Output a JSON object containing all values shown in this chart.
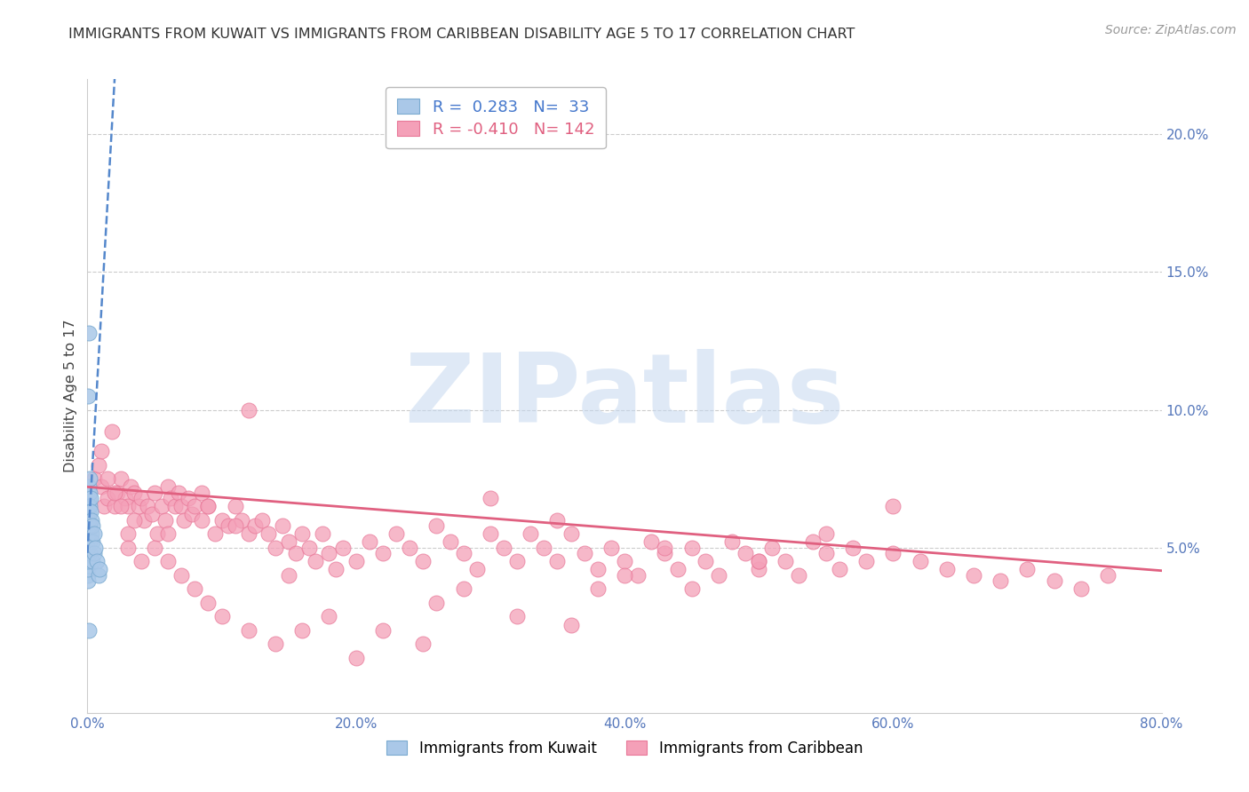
{
  "title": "IMMIGRANTS FROM KUWAIT VS IMMIGRANTS FROM CARIBBEAN DISABILITY AGE 5 TO 17 CORRELATION CHART",
  "source": "Source: ZipAtlas.com",
  "ylabel": "Disability Age 5 to 17",
  "xlim": [
    0.0,
    0.8
  ],
  "ylim": [
    -0.01,
    0.22
  ],
  "plot_ylim": [
    -0.01,
    0.22
  ],
  "xticks": [
    0.0,
    0.2,
    0.4,
    0.6,
    0.8
  ],
  "xtick_labels": [
    "0.0%",
    "20.0%",
    "40.0%",
    "60.0%",
    "80.0%"
  ],
  "yticks_right": [
    0.05,
    0.1,
    0.15,
    0.2
  ],
  "ytick_labels_right": [
    "5.0%",
    "10.0%",
    "15.0%",
    "20.0%"
  ],
  "kuwait_color": "#aac8e8",
  "caribbean_color": "#f4a0b8",
  "kuwait_edge": "#7aaad0",
  "caribbean_edge": "#e87898",
  "trend_kuwait_color": "#5588cc",
  "trend_caribbean_color": "#e06080",
  "watermark": "ZIPatlas",
  "watermark_color": "#c5d8f0",
  "legend_r_kuwait": "0.283",
  "legend_n_kuwait": "33",
  "legend_r_caribbean": "-0.410",
  "legend_n_caribbean": "142",
  "kuwait_x": [
    0.0002,
    0.0003,
    0.0004,
    0.0005,
    0.0006,
    0.0008,
    0.001,
    0.001,
    0.001,
    0.0012,
    0.0013,
    0.0015,
    0.0015,
    0.0016,
    0.0018,
    0.002,
    0.002,
    0.0022,
    0.0025,
    0.003,
    0.003,
    0.0035,
    0.004,
    0.004,
    0.005,
    0.005,
    0.006,
    0.007,
    0.008,
    0.009,
    0.0005,
    0.0008,
    0.001
  ],
  "kuwait_y": [
    0.04,
    0.038,
    0.042,
    0.045,
    0.05,
    0.055,
    0.06,
    0.065,
    0.068,
    0.072,
    0.062,
    0.058,
    0.052,
    0.048,
    0.07,
    0.075,
    0.065,
    0.068,
    0.063,
    0.06,
    0.055,
    0.058,
    0.052,
    0.045,
    0.055,
    0.048,
    0.05,
    0.045,
    0.04,
    0.042,
    0.105,
    0.128,
    0.02
  ],
  "caribbean_x": [
    0.005,
    0.008,
    0.01,
    0.012,
    0.015,
    0.018,
    0.02,
    0.022,
    0.025,
    0.028,
    0.03,
    0.032,
    0.035,
    0.038,
    0.04,
    0.042,
    0.045,
    0.048,
    0.05,
    0.052,
    0.055,
    0.058,
    0.06,
    0.062,
    0.065,
    0.068,
    0.07,
    0.072,
    0.075,
    0.078,
    0.08,
    0.085,
    0.09,
    0.095,
    0.1,
    0.105,
    0.11,
    0.115,
    0.12,
    0.125,
    0.13,
    0.135,
    0.14,
    0.145,
    0.15,
    0.155,
    0.16,
    0.165,
    0.17,
    0.175,
    0.18,
    0.185,
    0.19,
    0.2,
    0.21,
    0.22,
    0.23,
    0.24,
    0.25,
    0.26,
    0.27,
    0.28,
    0.29,
    0.3,
    0.31,
    0.32,
    0.33,
    0.34,
    0.35,
    0.36,
    0.37,
    0.38,
    0.39,
    0.4,
    0.41,
    0.42,
    0.43,
    0.44,
    0.45,
    0.46,
    0.47,
    0.48,
    0.49,
    0.5,
    0.51,
    0.52,
    0.53,
    0.54,
    0.55,
    0.56,
    0.57,
    0.58,
    0.6,
    0.62,
    0.64,
    0.66,
    0.68,
    0.7,
    0.72,
    0.74,
    0.76,
    0.01,
    0.015,
    0.02,
    0.025,
    0.03,
    0.035,
    0.04,
    0.05,
    0.06,
    0.07,
    0.08,
    0.09,
    0.1,
    0.12,
    0.14,
    0.16,
    0.18,
    0.2,
    0.22,
    0.25,
    0.28,
    0.32,
    0.36,
    0.4,
    0.45,
    0.5,
    0.55,
    0.6,
    0.03,
    0.06,
    0.09,
    0.3,
    0.35,
    0.12,
    0.5,
    0.43,
    0.38,
    0.26,
    0.15,
    0.085,
    0.11
  ],
  "caribbean_y": [
    0.075,
    0.08,
    0.072,
    0.065,
    0.068,
    0.092,
    0.065,
    0.07,
    0.075,
    0.068,
    0.065,
    0.072,
    0.07,
    0.065,
    0.068,
    0.06,
    0.065,
    0.062,
    0.07,
    0.055,
    0.065,
    0.06,
    0.072,
    0.068,
    0.065,
    0.07,
    0.065,
    0.06,
    0.068,
    0.062,
    0.065,
    0.07,
    0.065,
    0.055,
    0.06,
    0.058,
    0.065,
    0.06,
    0.055,
    0.058,
    0.06,
    0.055,
    0.05,
    0.058,
    0.052,
    0.048,
    0.055,
    0.05,
    0.045,
    0.055,
    0.048,
    0.042,
    0.05,
    0.045,
    0.052,
    0.048,
    0.055,
    0.05,
    0.045,
    0.058,
    0.052,
    0.048,
    0.042,
    0.055,
    0.05,
    0.045,
    0.055,
    0.05,
    0.045,
    0.055,
    0.048,
    0.042,
    0.05,
    0.045,
    0.04,
    0.052,
    0.048,
    0.042,
    0.05,
    0.045,
    0.04,
    0.052,
    0.048,
    0.042,
    0.05,
    0.045,
    0.04,
    0.052,
    0.048,
    0.042,
    0.05,
    0.045,
    0.048,
    0.045,
    0.042,
    0.04,
    0.038,
    0.042,
    0.038,
    0.035,
    0.04,
    0.085,
    0.075,
    0.07,
    0.065,
    0.055,
    0.06,
    0.045,
    0.05,
    0.045,
    0.04,
    0.035,
    0.03,
    0.025,
    0.02,
    0.015,
    0.02,
    0.025,
    0.01,
    0.02,
    0.015,
    0.035,
    0.025,
    0.022,
    0.04,
    0.035,
    0.045,
    0.055,
    0.065,
    0.05,
    0.055,
    0.065,
    0.068,
    0.06,
    0.1,
    0.045,
    0.05,
    0.035,
    0.03,
    0.04,
    0.06,
    0.058
  ],
  "trend_kuwait_slope": 8.5,
  "trend_kuwait_intercept": 0.048,
  "trend_caribbean_slope": -0.038,
  "trend_caribbean_intercept": 0.072
}
